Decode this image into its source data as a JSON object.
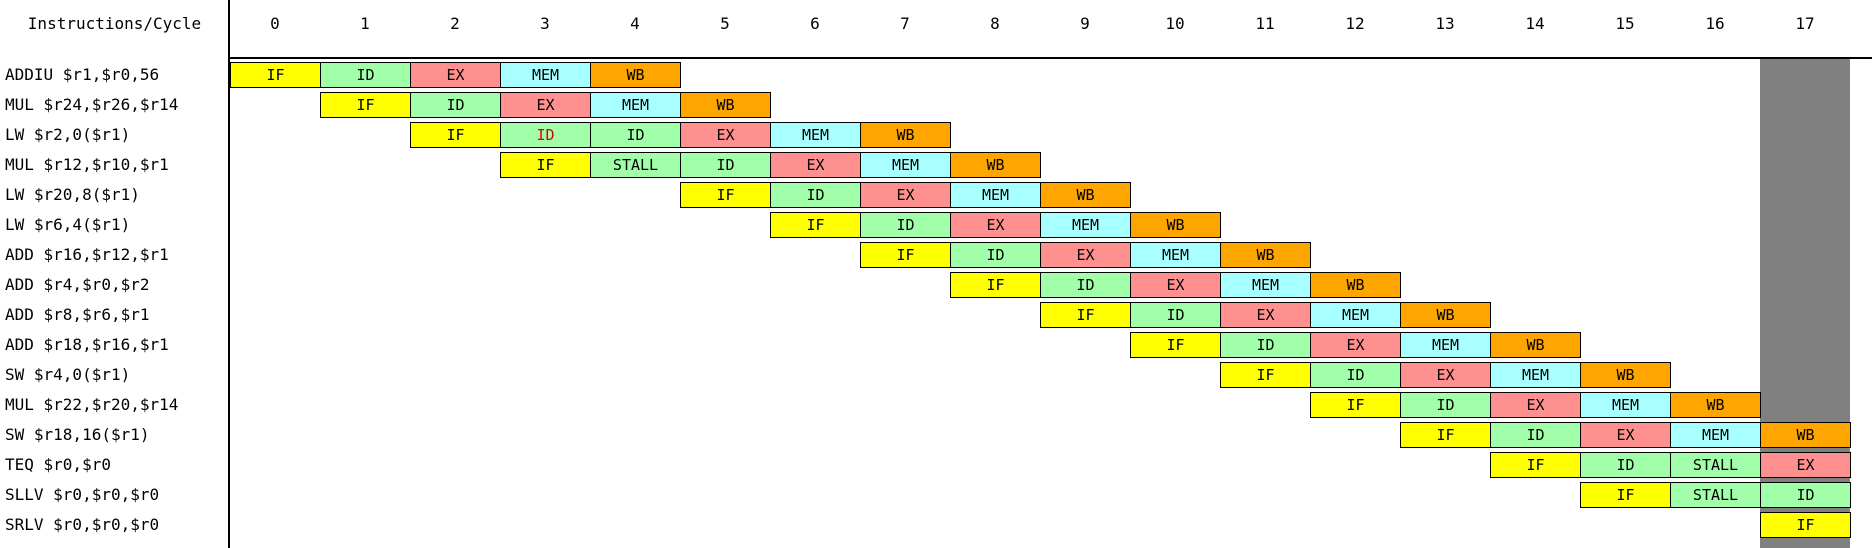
{
  "header": {
    "title": "Instructions/Cycle",
    "cycles": [
      "0",
      "1",
      "2",
      "3",
      "4",
      "5",
      "6",
      "7",
      "8",
      "9",
      "10",
      "11",
      "12",
      "13",
      "14",
      "15",
      "16",
      "17"
    ],
    "current_cycle": 17
  },
  "colors": {
    "IF": "#ffff00",
    "ID": "#a0ffa8",
    "EX": "#ff9090",
    "MEM": "#a8ffff",
    "WB": "#ffa500",
    "STALL": "#a0ffa8",
    "current_column": "#808080",
    "forwarded_text": "#e00000"
  },
  "instructions": [
    {
      "text": "ADDIU $r1,$r0,56",
      "start": 0,
      "stages": [
        "IF",
        "ID",
        "EX",
        "MEM",
        "WB"
      ]
    },
    {
      "text": "MUL $r24,$r26,$r14",
      "start": 1,
      "stages": [
        "IF",
        "ID",
        "EX",
        "MEM",
        "WB"
      ]
    },
    {
      "text": "LW $r2,0($r1)",
      "start": 2,
      "stages": [
        "IF",
        "ID",
        "ID",
        "EX",
        "MEM",
        "WB"
      ],
      "highlight": [
        1
      ]
    },
    {
      "text": "MUL $r12,$r10,$r1",
      "start": 3,
      "stages": [
        "IF",
        "STALL",
        "ID",
        "EX",
        "MEM",
        "WB"
      ]
    },
    {
      "text": "LW $r20,8($r1)",
      "start": 5,
      "stages": [
        "IF",
        "ID",
        "EX",
        "MEM",
        "WB"
      ]
    },
    {
      "text": "LW $r6,4($r1)",
      "start": 6,
      "stages": [
        "IF",
        "ID",
        "EX",
        "MEM",
        "WB"
      ]
    },
    {
      "text": "ADD $r16,$r12,$r1",
      "start": 7,
      "stages": [
        "IF",
        "ID",
        "EX",
        "MEM",
        "WB"
      ]
    },
    {
      "text": "ADD $r4,$r0,$r2",
      "start": 8,
      "stages": [
        "IF",
        "ID",
        "EX",
        "MEM",
        "WB"
      ]
    },
    {
      "text": "ADD $r8,$r6,$r1",
      "start": 9,
      "stages": [
        "IF",
        "ID",
        "EX",
        "MEM",
        "WB"
      ]
    },
    {
      "text": "ADD $r18,$r16,$r1",
      "start": 10,
      "stages": [
        "IF",
        "ID",
        "EX",
        "MEM",
        "WB"
      ]
    },
    {
      "text": "SW $r4,0($r1)",
      "start": 11,
      "stages": [
        "IF",
        "ID",
        "EX",
        "MEM",
        "WB"
      ]
    },
    {
      "text": "MUL $r22,$r20,$r14",
      "start": 12,
      "stages": [
        "IF",
        "ID",
        "EX",
        "MEM",
        "WB"
      ]
    },
    {
      "text": "SW $r18,16($r1)",
      "start": 13,
      "stages": [
        "IF",
        "ID",
        "EX",
        "MEM",
        "WB"
      ]
    },
    {
      "text": "TEQ $r0,$r0",
      "start": 14,
      "stages": [
        "IF",
        "ID",
        "STALL",
        "EX"
      ]
    },
    {
      "text": "SLLV $r0,$r0,$r0",
      "start": 15,
      "stages": [
        "IF",
        "STALL",
        "ID"
      ]
    },
    {
      "text": "SRLV $r0,$r0,$r0",
      "start": 17,
      "stages": [
        "IF"
      ]
    }
  ]
}
